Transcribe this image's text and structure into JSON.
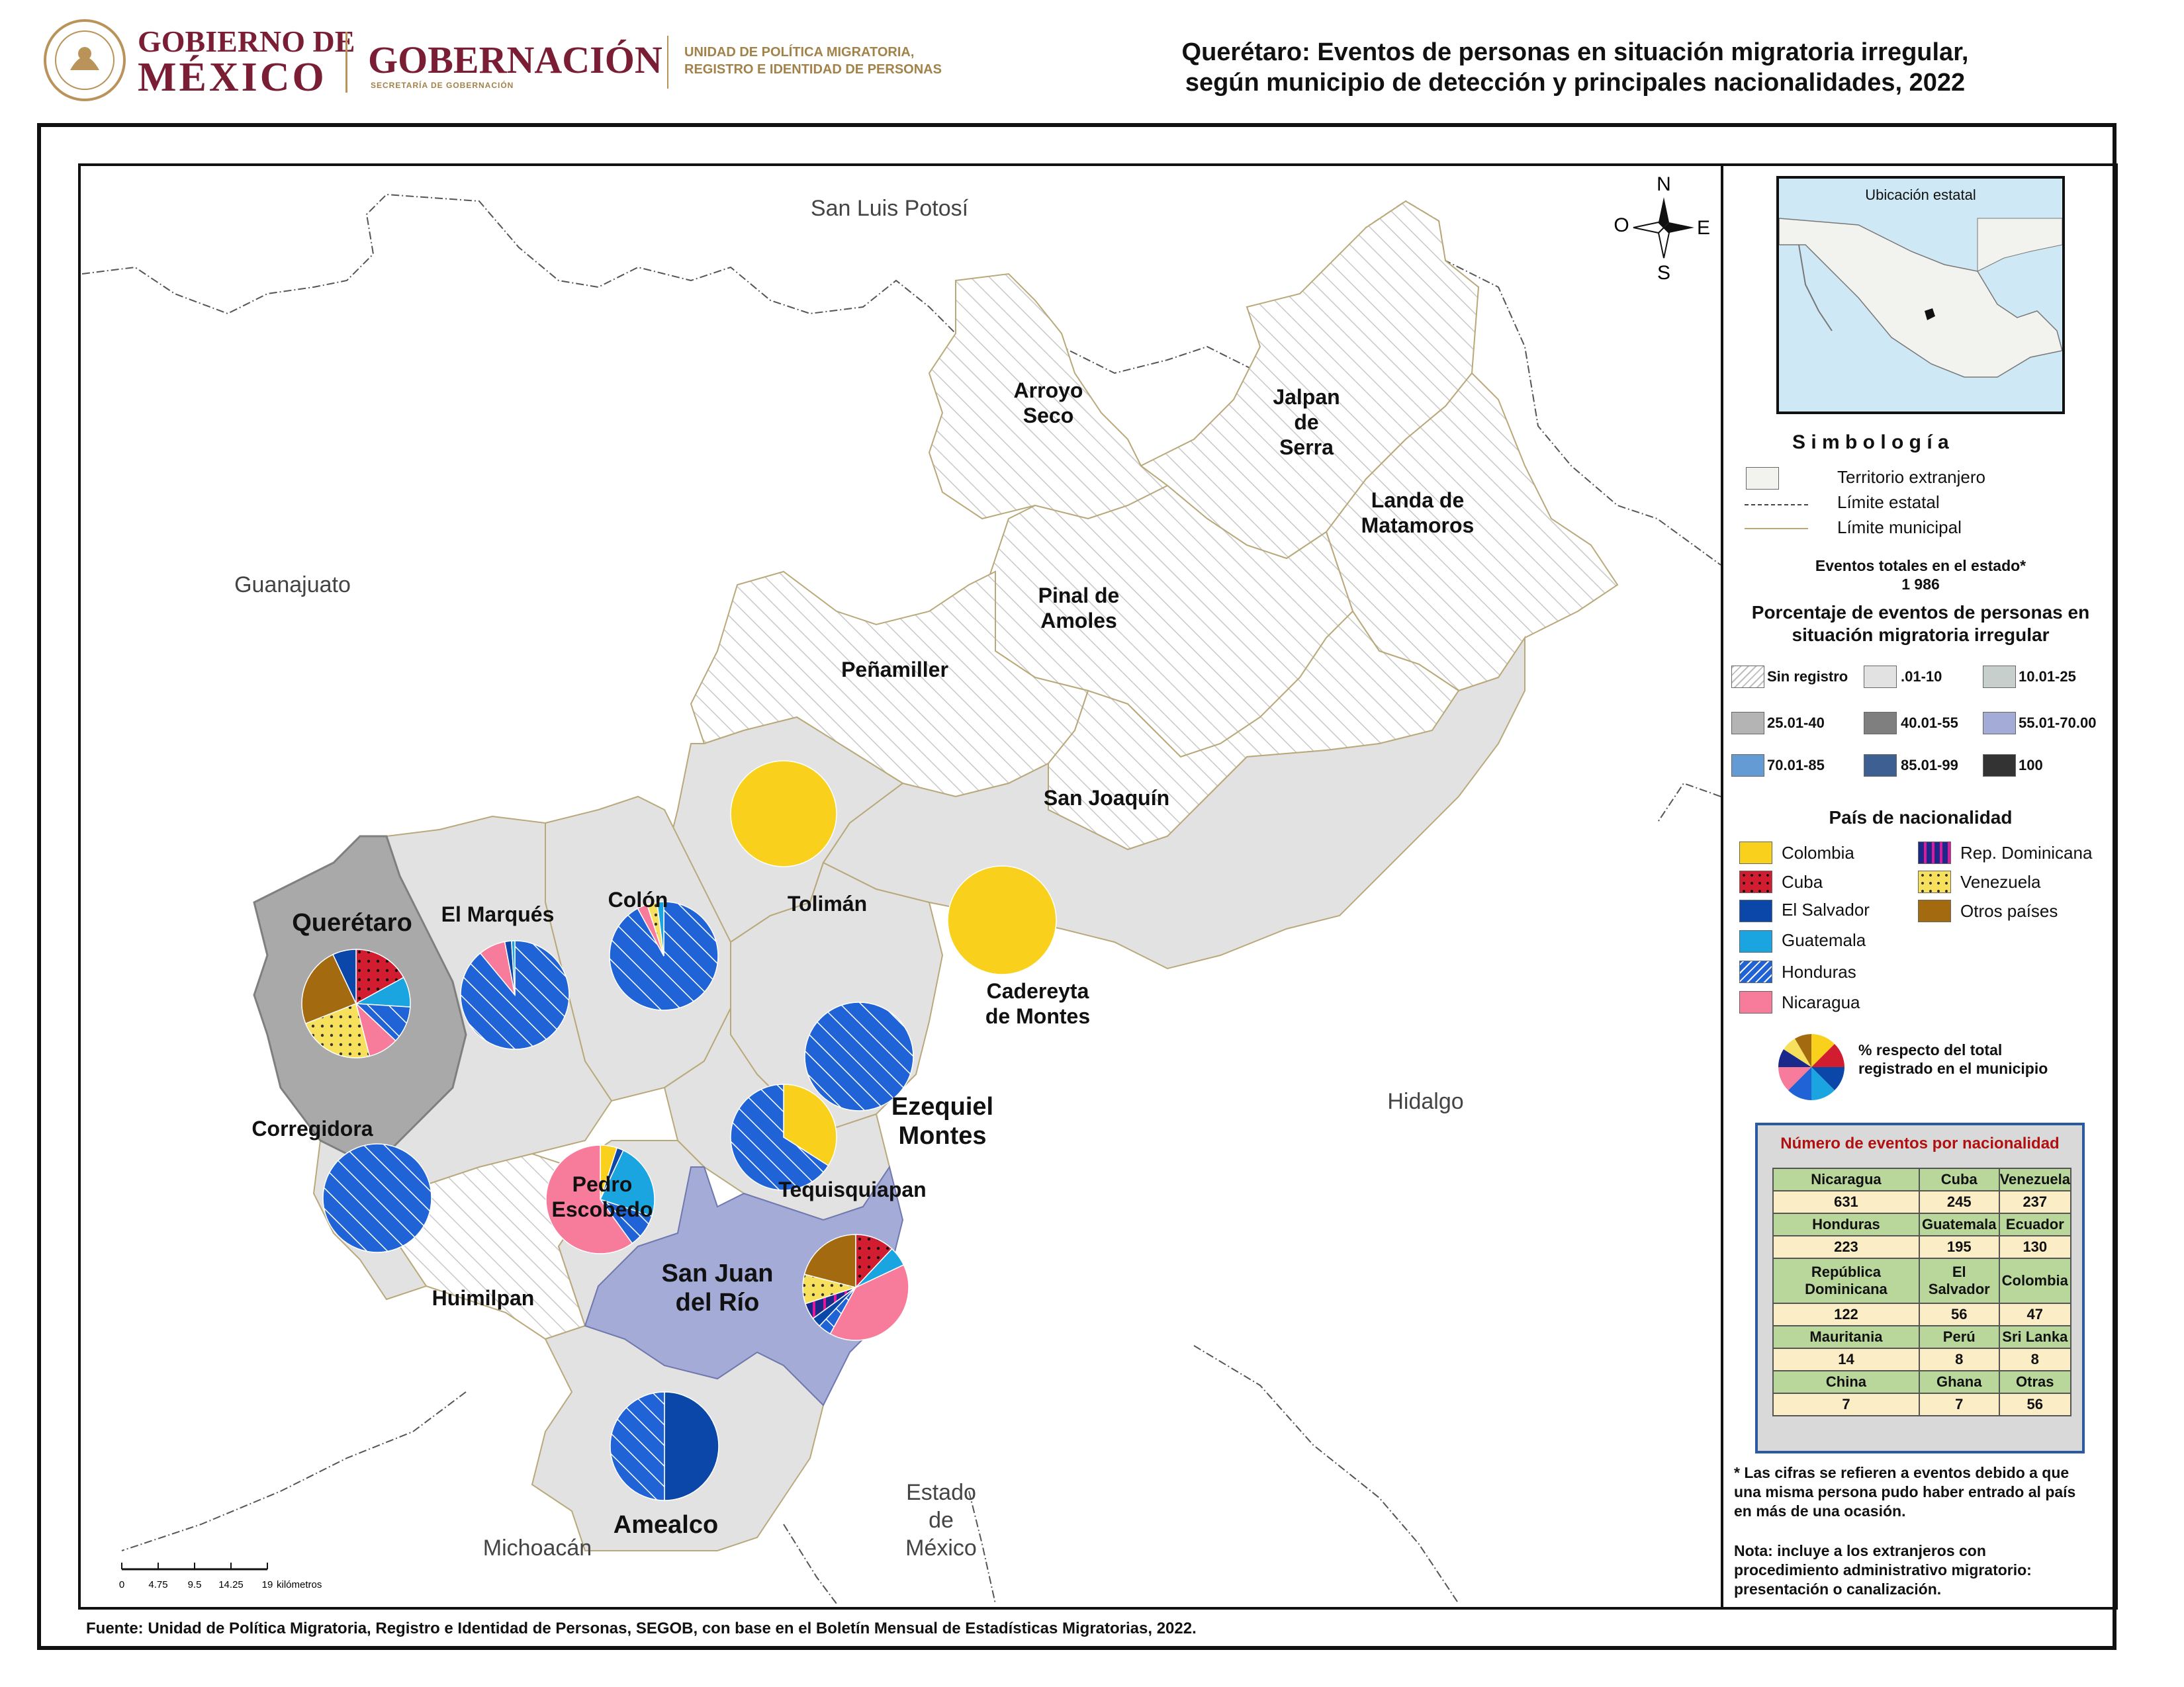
{
  "header": {
    "gob_line1": "GOBIERNO DE",
    "gob_line2": "MÉXICO",
    "gobernacion": "GOBERNACIÓN",
    "secretaria": "SECRETARÍA DE GOBERNACIÓN",
    "unidad_line1": "UNIDAD DE POLÍTICA MIGRATORIA,",
    "unidad_line2": "REGISTRO E IDENTIDAD DE PERSONAS",
    "title_line1": "Querétaro: Eventos de personas en situación migratoria irregular,",
    "title_line2": "según municipio de detección y principales nacionalidades, 2022"
  },
  "colors": {
    "Colombia": "#f9d11c",
    "Cuba": "#d21c30",
    "El Salvador": "#0a47a8",
    "Guatemala": "#1aa5e0",
    "Honduras": "#1f63d6",
    "Nicaragua": "#f77c9c",
    "Rep. Dominicana": "#1b2a8a",
    "Venezuela": "#f7e05c",
    "Otros países": "#a46a10",
    "sin_registro": "#ffffff",
    "r01_10": "#e2e2e2",
    "r10_25": "#c6cfcc",
    "r25_40": "#b4b4b4",
    "r40_55": "#7f7f7f",
    "r55_70": "#a3abd6",
    "r70_85": "#649bd5",
    "r85_99": "#3e5f92",
    "r100": "#333333"
  },
  "map": {
    "states": [
      "San Luis Potosí",
      "Guanajuato",
      "Hidalgo",
      "Michoacán",
      "Estado de México"
    ],
    "municipios": [
      {
        "name": "Arroyo Seco"
      },
      {
        "name": "Jalpan de Serra"
      },
      {
        "name": "Landa de Matamoros"
      },
      {
        "name": "Pinal de Amoles"
      },
      {
        "name": "Peñamiller"
      },
      {
        "name": "San Joaquín"
      },
      {
        "name": "Tolimán"
      },
      {
        "name": "Colón"
      },
      {
        "name": "El Marqués"
      },
      {
        "name": "Querétaro"
      },
      {
        "name": "Cadereyta de Montes"
      },
      {
        "name": "Ezequiel Montes"
      },
      {
        "name": "Corregidora"
      },
      {
        "name": "Pedro Escobedo"
      },
      {
        "name": "Tequisquiapan"
      },
      {
        "name": "San Juan del Río"
      },
      {
        "name": "Huimilpan"
      },
      {
        "name": "Amealco"
      }
    ],
    "pies": [
      {
        "municipio": "Tolimán",
        "slices": {
          "Colombia": 100
        }
      },
      {
        "municipio": "Cadereyta de Montes",
        "slices": {
          "Colombia": 100
        }
      },
      {
        "municipio": "Querétaro",
        "slices": {
          "Cuba": 17,
          "Guatemala": 9,
          "Honduras": 11,
          "Nicaragua": 9,
          "Venezuela": 23,
          "Otros países": 24,
          "El Salvador": 7
        }
      },
      {
        "municipio": "El Marqués",
        "slices": {
          "Honduras": 89,
          "Nicaragua": 8,
          "El Salvador": 2,
          "Guatemala": 1
        }
      },
      {
        "municipio": "Colón",
        "slices": {
          "Honduras": 92,
          "Nicaragua": 3,
          "Venezuela": 3,
          "Guatemala": 2
        }
      },
      {
        "municipio": "Ezequiel Montes",
        "slices": {
          "Honduras": 100
        }
      },
      {
        "municipio": "Tequisquiapan",
        "slices": {
          "Colombia": 34,
          "Honduras": 66
        }
      },
      {
        "municipio": "Corregidora",
        "slices": {
          "Honduras": 100
        }
      },
      {
        "municipio": "Pedro Escobedo",
        "slices": {
          "Colombia": 5,
          "El Salvador": 2,
          "Guatemala": 23,
          "Honduras": 10,
          "Nicaragua": 60
        }
      },
      {
        "municipio": "San Juan del Río",
        "slices": {
          "Cuba": 12,
          "Guatemala": 6,
          "Nicaragua": 40,
          "Honduras": 4,
          "El Salvador": 3,
          "Rep. Dominicana": 5,
          "Venezuela": 9,
          "Otros países": 21
        }
      },
      {
        "municipio": "Amealco",
        "slices": {
          "El Salvador": 50,
          "Honduras": 50
        }
      }
    ],
    "north_label": "N",
    "south_label": "S",
    "east_label": "E",
    "west_label": "O",
    "scale_ticks": [
      "0",
      "4.75",
      "9.5",
      "14.25",
      "19"
    ],
    "scale_unit": "kilómetros"
  },
  "legend": {
    "inset_title": "Ubicación estatal",
    "simbologia": "S i m b o l o g í a",
    "territorio": "Territorio extranjero",
    "limite_estatal": "Límite estatal",
    "limite_municipal": "Límite municipal",
    "total_label": "Eventos totales en el estado*",
    "total_value": "1 986",
    "pct_title_line1": "Porcentaje de eventos de personas en",
    "pct_title_line2": "situación migratoria irregular",
    "ranges": [
      "Sin registro",
      ".01-10",
      "10.01-25",
      "25.01-40",
      "40.01-55",
      "55.01-70.00",
      "70.01-85",
      "85.01-99",
      "100"
    ],
    "pais_title": "País de nacionalidad",
    "paises_left": [
      "Colombia",
      "Cuba",
      "El Salvador",
      "Guatemala",
      "Honduras",
      "Nicaragua"
    ],
    "paises_right": [
      "Rep. Dominicana",
      "Venezuela",
      "Otros países"
    ],
    "pie_note_line1": "%  respecto del total",
    "pie_note_line2": "registrado en el municipio",
    "table_title": "Número de eventos por nacionalidad",
    "table": [
      [
        {
          "name": "Nicaragua",
          "value": "631"
        },
        {
          "name": "Cuba",
          "value": "245"
        },
        {
          "name": "Venezuela",
          "value": "237"
        }
      ],
      [
        {
          "name": "Honduras",
          "value": "223"
        },
        {
          "name": "Guatemala",
          "value": "195"
        },
        {
          "name": "Ecuador",
          "value": "130"
        }
      ],
      [
        {
          "name": "República Dominicana",
          "value": "122"
        },
        {
          "name": "El Salvador",
          "value": "56"
        },
        {
          "name": "Colombia",
          "value": "47"
        }
      ],
      [
        {
          "name": "Mauritania",
          "value": "14"
        },
        {
          "name": "Perú",
          "value": "8"
        },
        {
          "name": "Sri Lanka",
          "value": "8"
        }
      ],
      [
        {
          "name": "China",
          "value": "7"
        },
        {
          "name": "Ghana",
          "value": "7"
        },
        {
          "name": "Otras",
          "value": "56"
        }
      ]
    ],
    "footnote": "* Las cifras se refieren a eventos debido a que una misma persona pudo haber entrado al país en más de una ocasión.",
    "nota": "Nota: incluye a los extranjeros con procedimiento administrativo migratorio: presentación o canalización."
  },
  "source": "Fuente: Unidad de Política Migratoria, Registro e Identidad de Personas, SEGOB, con base en el Boletín Mensual de Estadísticas Migratorias, 2022."
}
